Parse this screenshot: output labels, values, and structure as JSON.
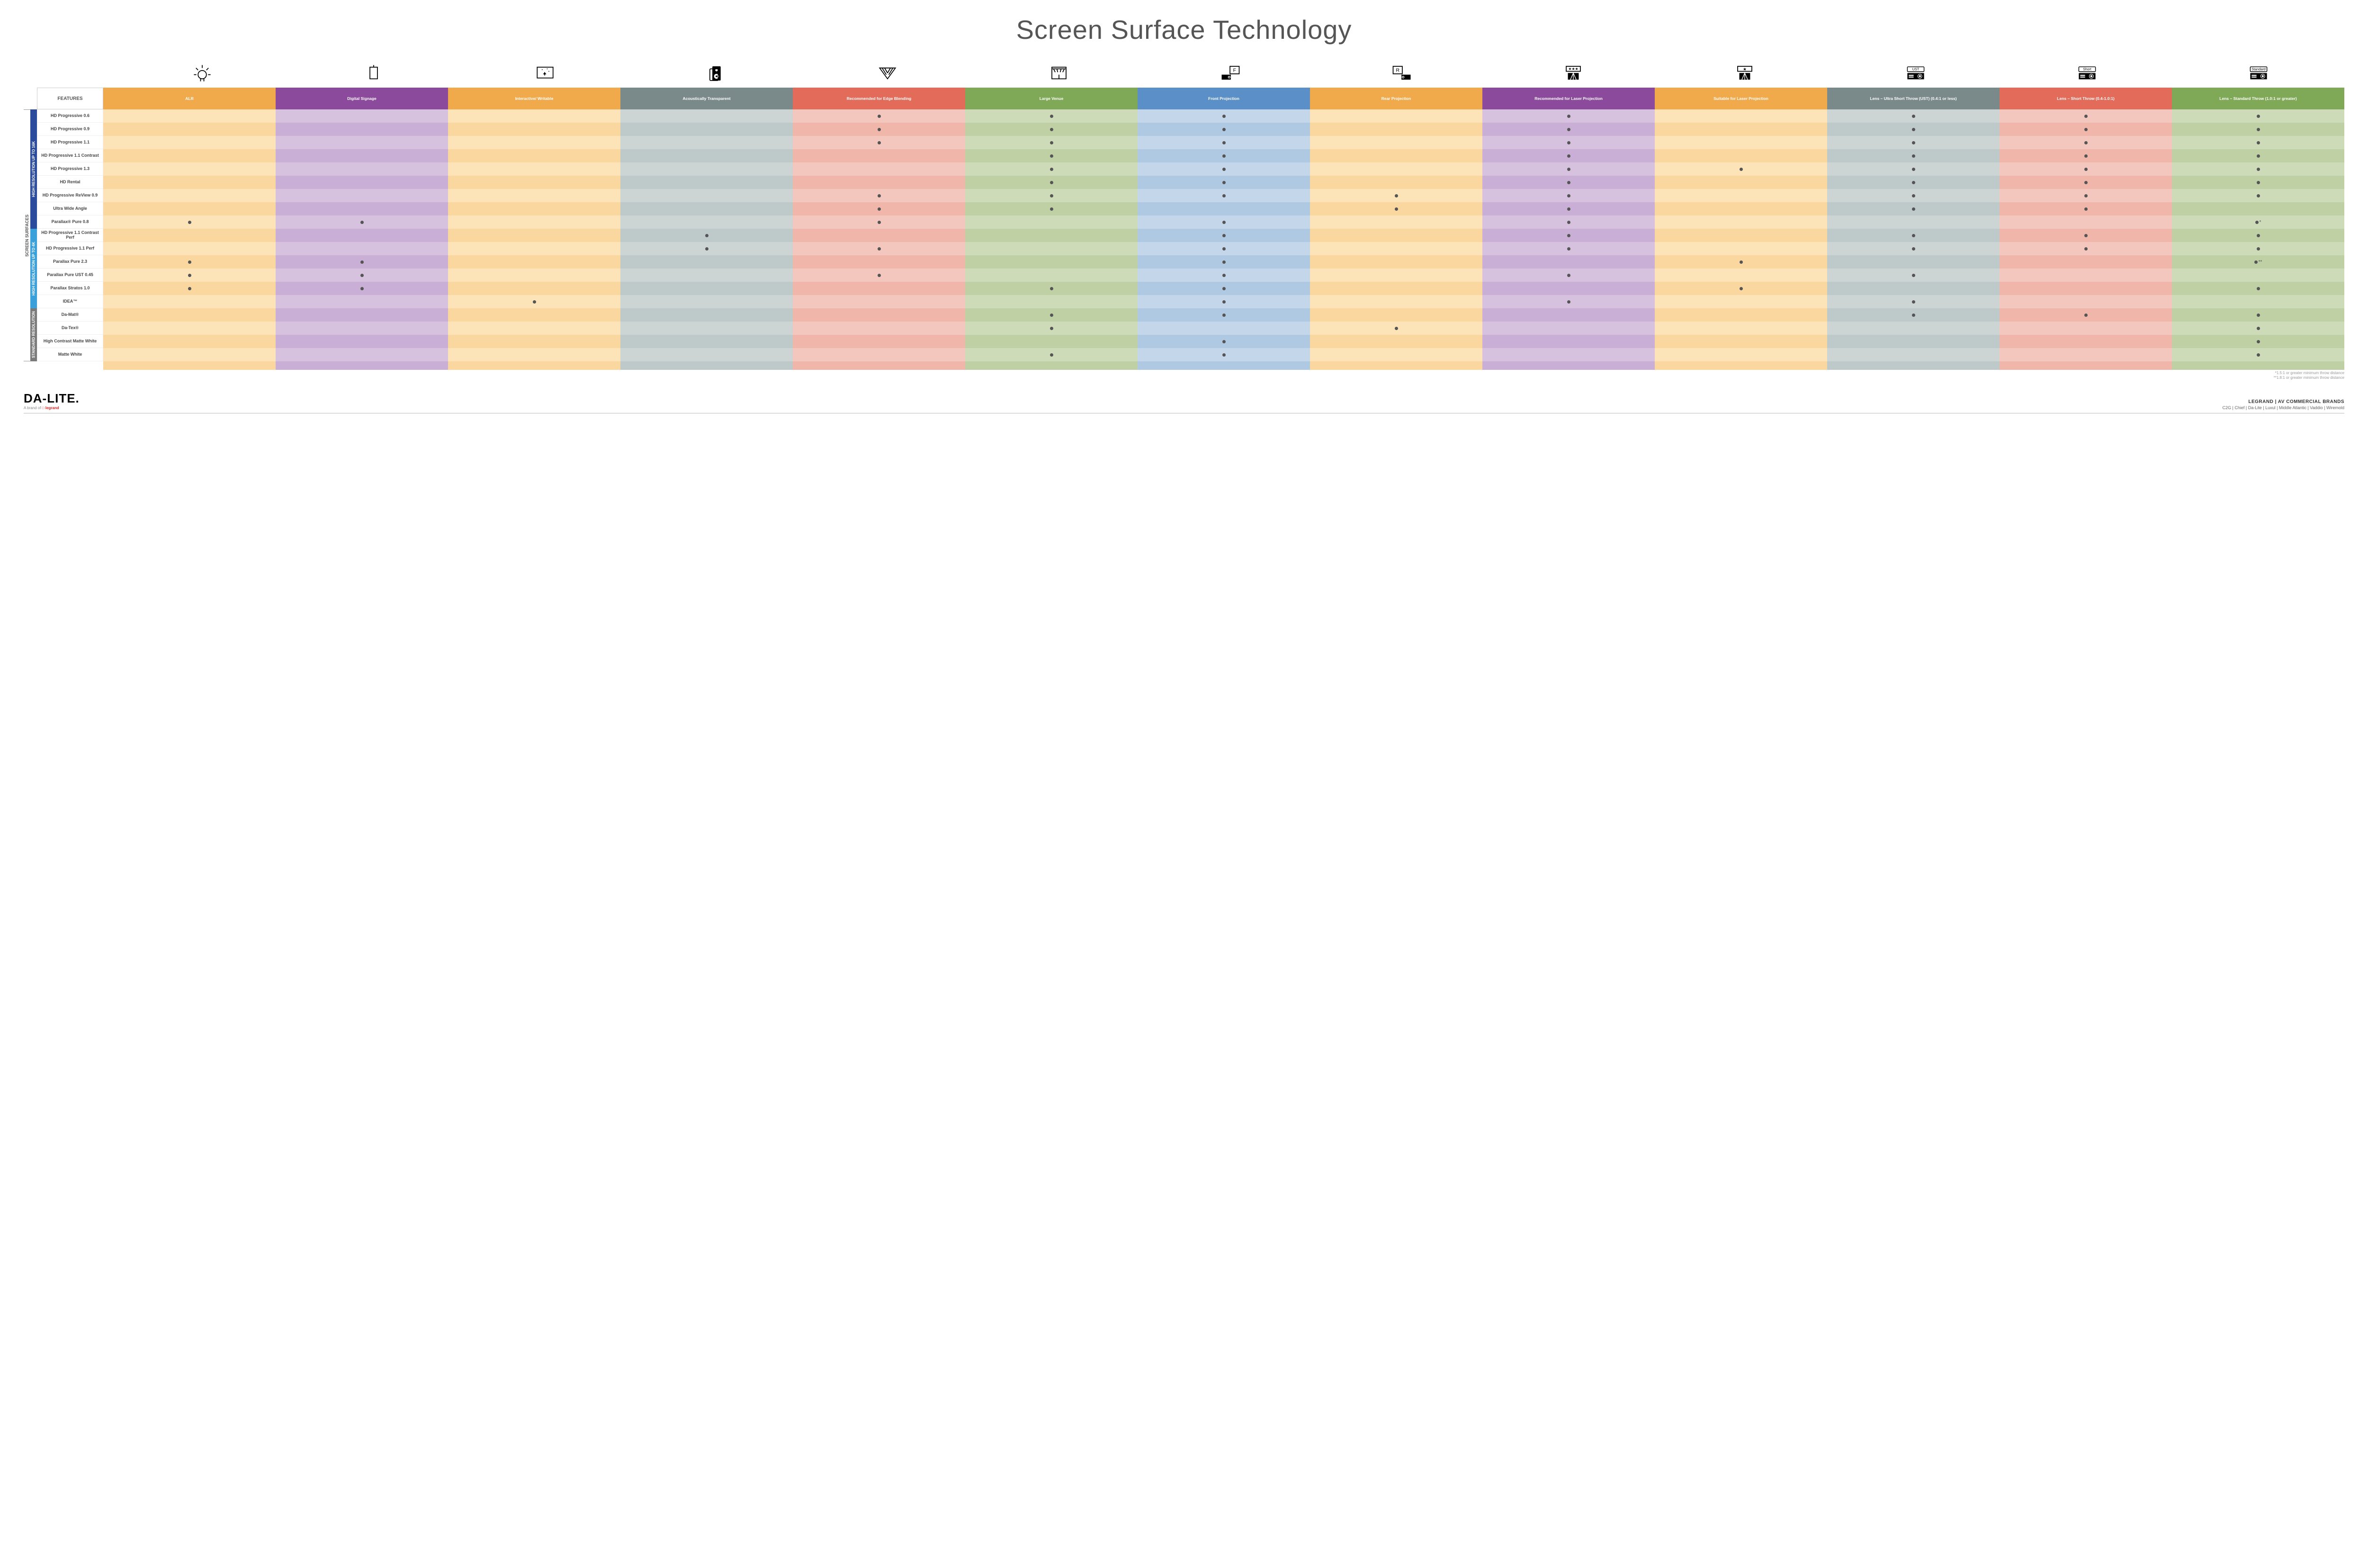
{
  "title": "Screen Surface Technology",
  "features_label": "FEATURES",
  "side_outer_label": "SCREEN SURFACES",
  "columns": [
    {
      "key": "alr",
      "label": "ALR",
      "color": "#f0a94b",
      "icon": "bulb"
    },
    {
      "key": "ds",
      "label": "Digital Signage",
      "color": "#8b4a9c",
      "icon": "signage"
    },
    {
      "key": "iw",
      "label": "Interactive/\nWritable",
      "color": "#f0a94b",
      "icon": "touch"
    },
    {
      "key": "at",
      "label": "Acoustically Transparent",
      "color": "#7a8a8a",
      "icon": "speaker"
    },
    {
      "key": "eb",
      "label": "Recommended for Edge Blending",
      "color": "#e36b5a",
      "icon": "blend"
    },
    {
      "key": "lv",
      "label": "Large Venue",
      "color": "#7fa857",
      "icon": "venue"
    },
    {
      "key": "fp",
      "label": "Front Projection",
      "color": "#5a8fc7",
      "icon": "front"
    },
    {
      "key": "rp",
      "label": "Rear Projection",
      "color": "#f0a94b",
      "icon": "rear"
    },
    {
      "key": "rl",
      "label": "Recommended for Laser Projection",
      "color": "#8b4a9c",
      "icon": "laser3"
    },
    {
      "key": "sl",
      "label": "Suitable for Laser Projection",
      "color": "#f0a94b",
      "icon": "laser1"
    },
    {
      "key": "ust",
      "label": "Lens – Ultra Short Throw (UST) (0.4:1 or less)",
      "color": "#7a8a8a",
      "icon": "ust"
    },
    {
      "key": "st",
      "label": "Lens – Short Throw (0.4-1.0:1)",
      "color": "#e36b5a",
      "icon": "short"
    },
    {
      "key": "std",
      "label": "Lens – Standard Throw (1.0:1 or greater)",
      "color": "#7fa857",
      "icon": "standard"
    }
  ],
  "tints": {
    "alr": [
      "#fce3b8",
      "#f9d79e"
    ],
    "ds": [
      "#d6c1df",
      "#c9aed5"
    ],
    "iw": [
      "#fce3b8",
      "#f9d79e"
    ],
    "at": [
      "#cdd4d4",
      "#becac9"
    ],
    "eb": [
      "#f4c7be",
      "#f0b6a9"
    ],
    "lv": [
      "#cddbb8",
      "#bfd1a4"
    ],
    "fp": [
      "#c3d6ea",
      "#b0c9e3"
    ],
    "rp": [
      "#fce3b8",
      "#f9d79e"
    ],
    "rl": [
      "#d6c1df",
      "#c9aed5"
    ],
    "sl": [
      "#fce3b8",
      "#f9d79e"
    ],
    "ust": [
      "#cdd4d4",
      "#becac9"
    ],
    "st": [
      "#f4c7be",
      "#f0b6a9"
    ],
    "std": [
      "#cddbb8",
      "#bfd1a4"
    ]
  },
  "groups": [
    {
      "label": "HIGH RESOLUTION UP TO 16K",
      "color": "#2a4b9b",
      "rows": [
        {
          "label": "HD Progressive 0.6",
          "cells": {
            "eb": "•",
            "lv": "•",
            "fp": "•",
            "rl": "•",
            "ust": "•",
            "st": "•",
            "std": "•"
          }
        },
        {
          "label": "HD Progressive 0.9",
          "cells": {
            "eb": "•",
            "lv": "•",
            "fp": "•",
            "rl": "•",
            "ust": "•",
            "st": "•",
            "std": "•"
          }
        },
        {
          "label": "HD Progressive 1.1",
          "cells": {
            "eb": "•",
            "lv": "•",
            "fp": "•",
            "rl": "•",
            "ust": "•",
            "st": "•",
            "std": "•"
          }
        },
        {
          "label": "HD Progressive 1.1 Contrast",
          "cells": {
            "lv": "•",
            "fp": "•",
            "rl": "•",
            "ust": "•",
            "st": "•",
            "std": "•"
          }
        },
        {
          "label": "HD Progressive 1.3",
          "cells": {
            "lv": "•",
            "fp": "•",
            "rl": "•",
            "sl": "•",
            "ust": "•",
            "st": "•",
            "std": "•"
          }
        },
        {
          "label": "HD Rental",
          "cells": {
            "lv": "•",
            "fp": "•",
            "rl": "•",
            "ust": "•",
            "st": "•",
            "std": "•"
          }
        },
        {
          "label": "HD Progressive ReView 0.9",
          "cells": {
            "eb": "•",
            "lv": "•",
            "fp": "•",
            "rp": "•",
            "rl": "•",
            "ust": "•",
            "st": "•",
            "std": "•"
          }
        },
        {
          "label": "Ultra Wide Angle",
          "cells": {
            "eb": "•",
            "lv": "•",
            "rp": "•",
            "rl": "•",
            "ust": "•",
            "st": "•"
          }
        },
        {
          "label": "Parallax® Pure 0.8",
          "cells": {
            "alr": "•",
            "ds": "•",
            "eb": "•",
            "fp": "•",
            "rl": "•",
            "std": "•*"
          }
        }
      ]
    },
    {
      "label": "HIGH RESOLUTION UP TO 4K",
      "color": "#3aa0d9",
      "rows": [
        {
          "label": "HD Progressive 1.1 Contrast Perf",
          "cells": {
            "at": "•",
            "fp": "•",
            "rl": "•",
            "ust": "•",
            "st": "•",
            "std": "•"
          }
        },
        {
          "label": "HD Progressive 1.1 Perf",
          "cells": {
            "at": "•",
            "eb": "•",
            "fp": "•",
            "rl": "•",
            "ust": "•",
            "st": "•",
            "std": "•"
          }
        },
        {
          "label": "Parallax Pure 2.3",
          "cells": {
            "alr": "•",
            "ds": "•",
            "fp": "•",
            "sl": "•",
            "std": "•**"
          }
        },
        {
          "label": "Parallax Pure UST 0.45",
          "cells": {
            "alr": "•",
            "ds": "•",
            "eb": "•",
            "fp": "•",
            "rl": "•",
            "ust": "•"
          }
        },
        {
          "label": "Parallax Stratos 1.0",
          "cells": {
            "alr": "•",
            "ds": "•",
            "lv": "•",
            "fp": "•",
            "sl": "•",
            "std": "•"
          }
        },
        {
          "label": "IDEA™",
          "cells": {
            "iw": "•",
            "fp": "•",
            "rl": "•",
            "ust": "•"
          }
        }
      ]
    },
    {
      "label": "STANDARD RESOLUTION",
      "color": "#7a7a7a",
      "rows": [
        {
          "label": "Da-Mat®",
          "cells": {
            "lv": "•",
            "fp": "•",
            "ust": "•",
            "st": "•",
            "std": "•"
          }
        },
        {
          "label": "Da-Tex®",
          "cells": {
            "lv": "•",
            "rp": "•",
            "std": "•"
          }
        },
        {
          "label": "High Contrast Matte White",
          "cells": {
            "fp": "•",
            "std": "•"
          }
        },
        {
          "label": "Matte White",
          "cells": {
            "lv": "•",
            "fp": "•",
            "std": "•"
          }
        }
      ]
    }
  ],
  "footnotes": [
    "*1.5:1 or greater minimum throw distance",
    "**1.8:1 or greater minimum throw distance"
  ],
  "footer": {
    "logo": "DA-LITE.",
    "logo_sub_prefix": "A brand of ",
    "logo_sub_brand": "legrand",
    "brands_title": "LEGRAND | AV COMMERCIAL BRANDS",
    "brands_list": "C2G  |  Chief  |  Da-Lite  |  Luxul  |  Middle Atlantic  |  Vaddio  |  Wiremold"
  }
}
